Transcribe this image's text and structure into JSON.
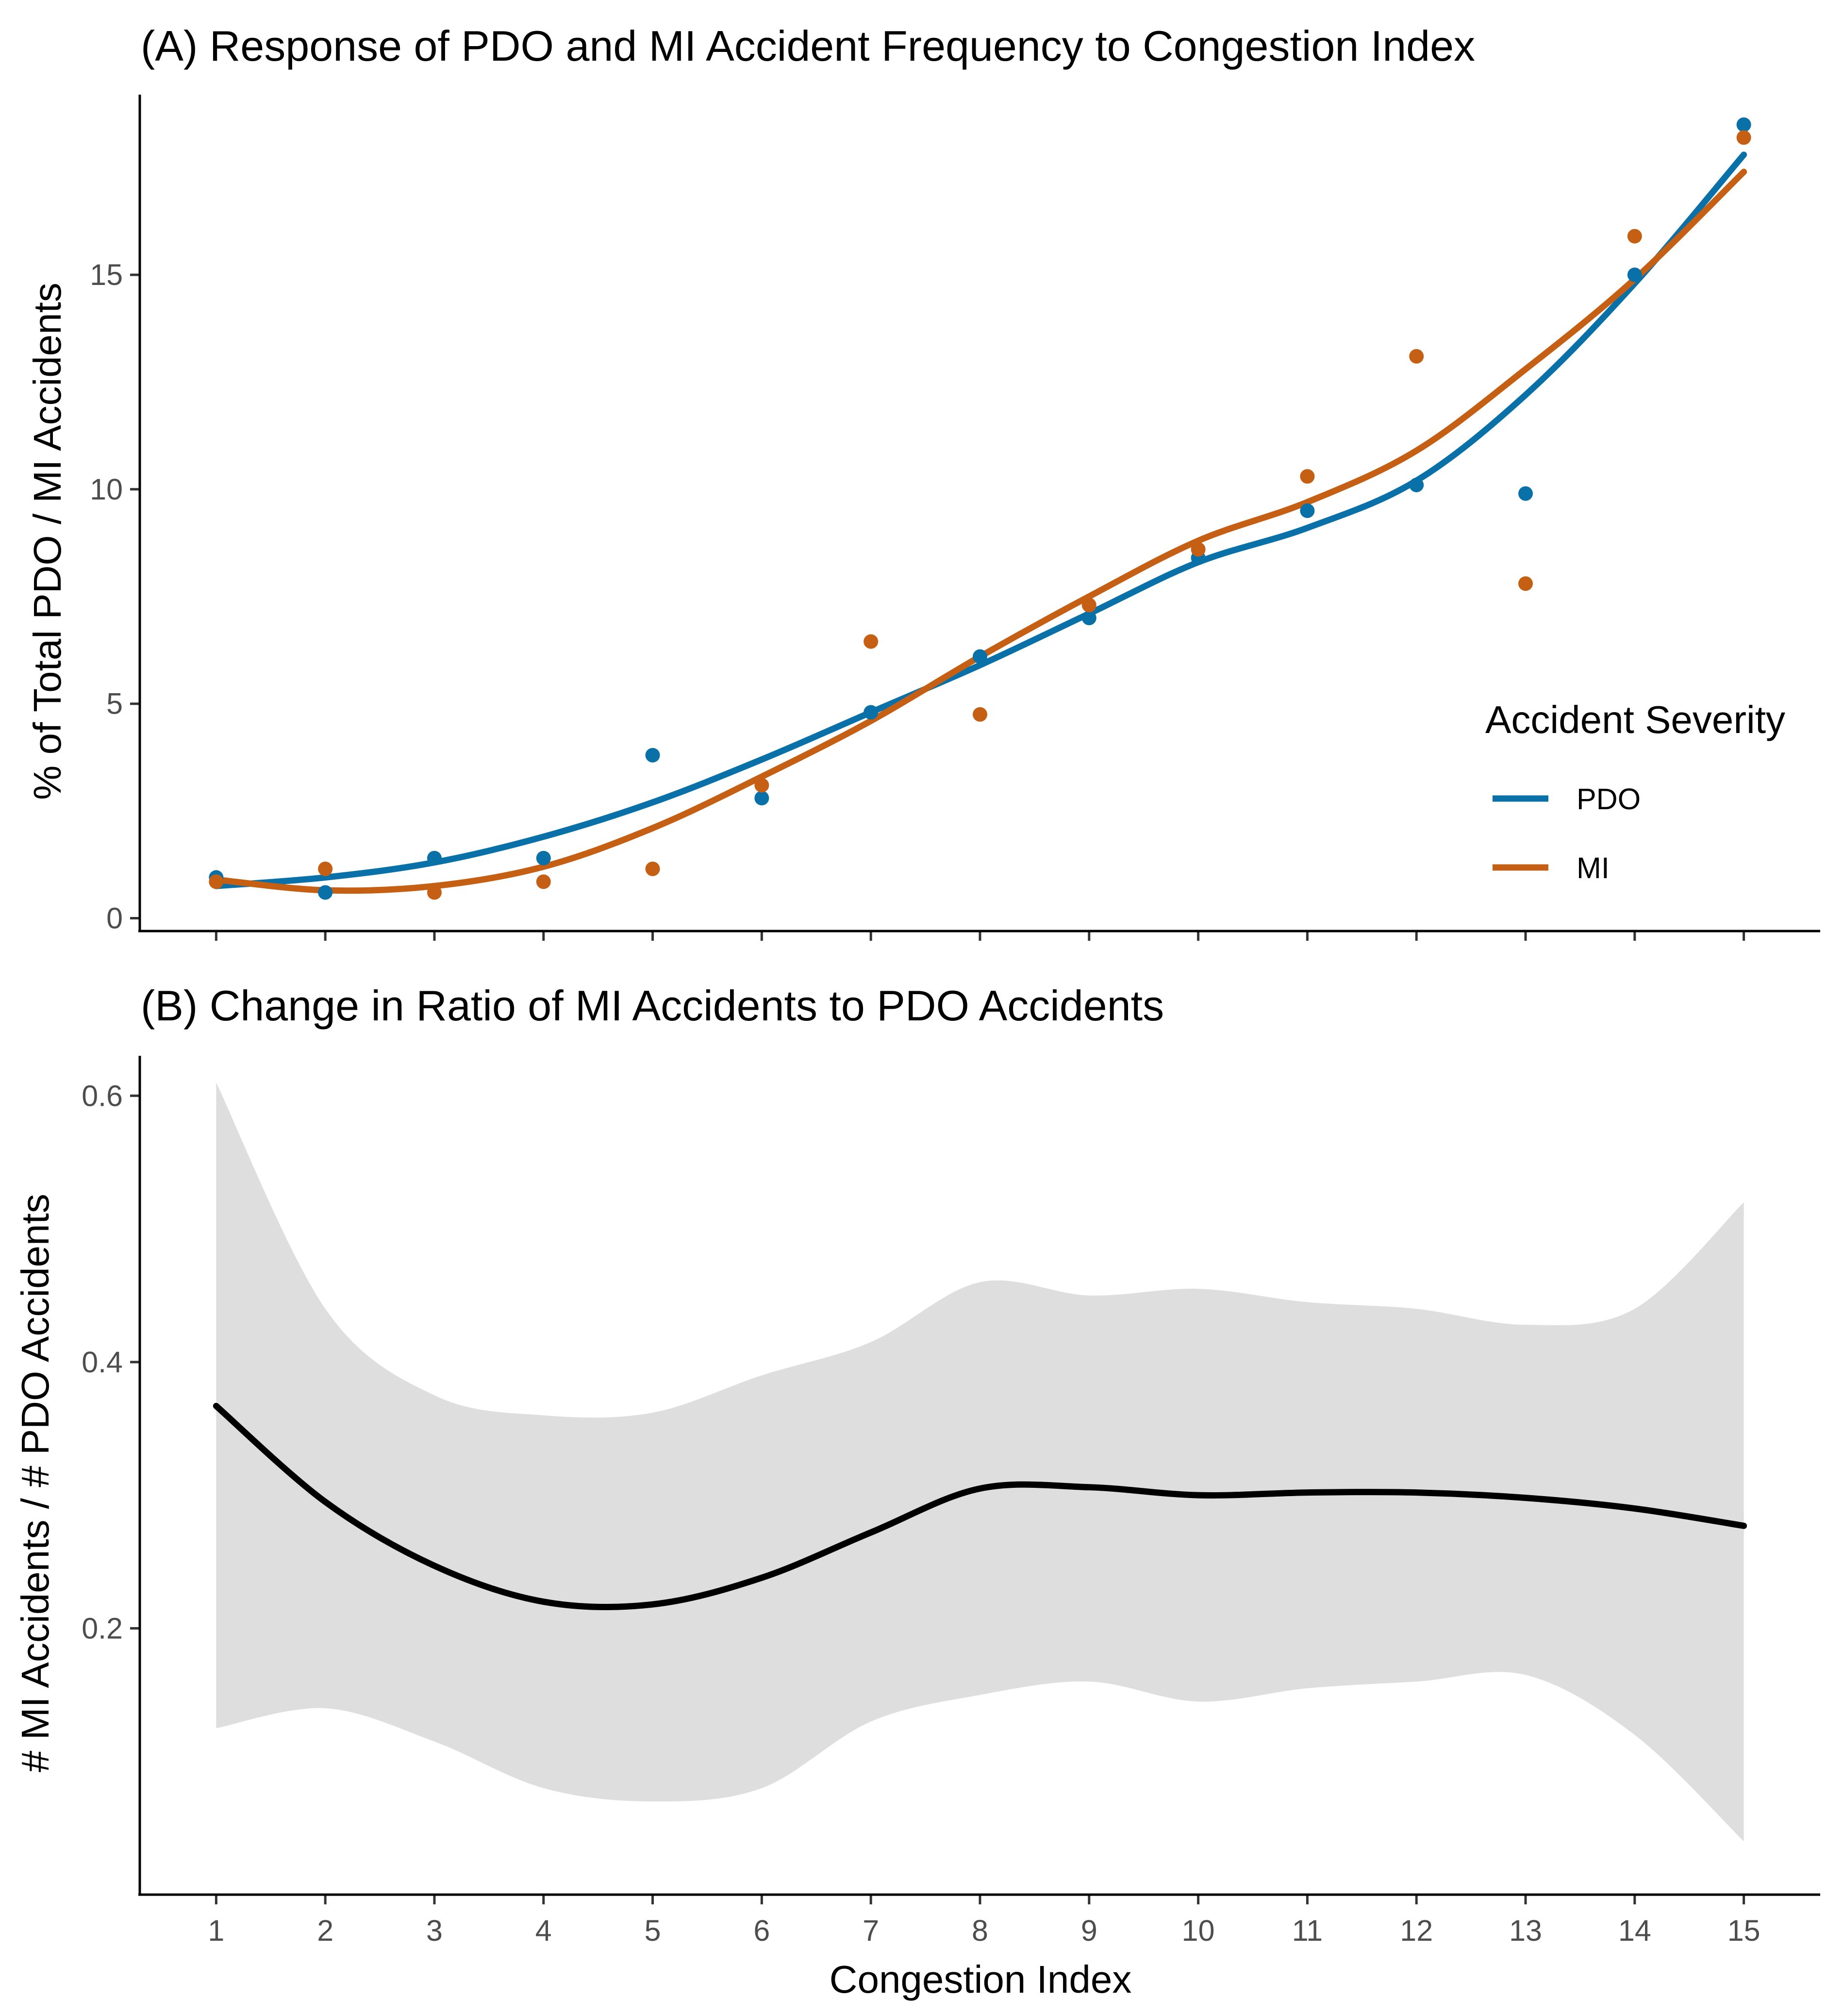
{
  "chart_data": [
    {
      "id": "A",
      "type": "scatter",
      "title": "(A) Response of PDO and MI Accident Frequency to Congestion Index",
      "xlabel": "",
      "ylabel": "% of Total PDO / MI Accidents",
      "x": [
        1,
        2,
        3,
        4,
        5,
        6,
        7,
        8,
        9,
        10,
        11,
        12,
        13,
        14,
        15
      ],
      "xlim": [
        0.3,
        15.7
      ],
      "ylim": [
        -0.3,
        19.2
      ],
      "yticks": [
        0,
        5,
        10,
        15
      ],
      "grid": false,
      "legend": {
        "title": "Accident Severity",
        "placement": "right"
      },
      "series": [
        {
          "name": "PDO",
          "color": "#0a71a8",
          "points": [
            0.95,
            0.6,
            1.4,
            1.4,
            3.8,
            2.8,
            4.8,
            6.1,
            7,
            8.4,
            9.5,
            10.1,
            9.9,
            15,
            18.5
          ],
          "smooth": [
            0.75,
            0.95,
            1.3,
            1.9,
            2.7,
            3.7,
            4.8,
            5.9,
            7.1,
            8.3,
            9.1,
            10.2,
            12.2,
            14.8,
            17.8
          ]
        },
        {
          "name": "MI",
          "color": "#c55f14",
          "points": [
            0.85,
            1.15,
            0.6,
            0.85,
            1.15,
            3.1,
            6.45,
            4.75,
            7.3,
            8.6,
            10.3,
            13.1,
            7.8,
            15.9,
            18.2
          ],
          "smooth": [
            0.9,
            0.65,
            0.75,
            1.2,
            2.1,
            3.3,
            4.6,
            6.1,
            7.5,
            8.8,
            9.7,
            10.9,
            12.8,
            14.9,
            17.4
          ]
        }
      ]
    },
    {
      "id": "B",
      "type": "line",
      "title": "(B) Change in Ratio of MI Accidents to PDO Accidents",
      "xlabel": "Congestion Index",
      "ylabel": "# MI Accidents / # PDO Accidents",
      "x": [
        1,
        2,
        3,
        4,
        5,
        6,
        7,
        8,
        9,
        10,
        11,
        12,
        13,
        14,
        15
      ],
      "xlim": [
        0.3,
        15.7
      ],
      "ylim": [
        0.0,
        0.63
      ],
      "yticks": [
        0.2,
        0.4,
        0.6
      ],
      "ytick_labels": [
        "0.2",
        "0.4",
        "0.6"
      ],
      "grid": false,
      "series": [
        {
          "name": "ratio",
          "color": "#000000",
          "values": [
            0.367,
            0.295,
            0.247,
            0.22,
            0.218,
            0.238,
            0.272,
            0.305,
            0.306,
            0.3,
            0.302,
            0.302,
            0.298,
            0.29,
            0.277
          ],
          "ci_lower": [
            0.125,
            0.14,
            0.115,
            0.08,
            0.07,
            0.08,
            0.13,
            0.15,
            0.16,
            0.145,
            0.155,
            0.16,
            0.165,
            0.12,
            0.04
          ],
          "ci_upper": [
            0.61,
            0.44,
            0.375,
            0.36,
            0.362,
            0.39,
            0.415,
            0.46,
            0.45,
            0.455,
            0.445,
            0.44,
            0.428,
            0.44,
            0.52
          ],
          "ci_color": "#dedede"
        }
      ]
    }
  ],
  "xtick_labels": [
    "1",
    "2",
    "3",
    "4",
    "5",
    "6",
    "7",
    "8",
    "9",
    "10",
    "11",
    "12",
    "13",
    "14",
    "15"
  ],
  "ytick_labels_a": [
    "0",
    "5",
    "10",
    "15"
  ]
}
